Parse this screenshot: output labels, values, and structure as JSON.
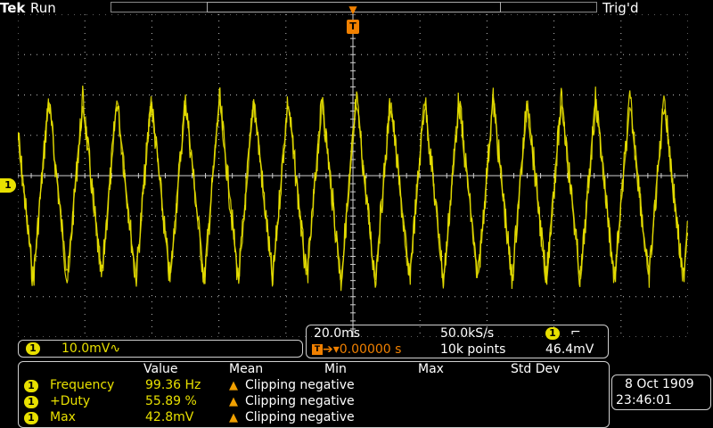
{
  "header": {
    "brand": "Tek",
    "run_state": "Run",
    "trigger_state": "Trig'd"
  },
  "trigger_marker": "T",
  "channel_marker": "1",
  "channel": {
    "badge": "1",
    "scale": "10.0mV",
    "coupling_symbol": "∿"
  },
  "timebase": {
    "time_per_div": "20.0ms",
    "sample_rate": "50.0kS/s",
    "trigger_position_label": "T",
    "trigger_arrow": "➔▾",
    "trigger_position": "0.00000 s",
    "record_length": "10k points",
    "trigger_source_badge": "1",
    "trigger_slope_symbol": "⌐",
    "trigger_level": "46.4mV"
  },
  "measurements": {
    "headers": [
      "Value",
      "Mean",
      "Min",
      "Max",
      "Std Dev"
    ],
    "rows": [
      {
        "badge": "1",
        "name": "Frequency",
        "value": "99.36 Hz",
        "mean": "Clipping negative"
      },
      {
        "badge": "1",
        "name": "+Duty",
        "value": "55.89 %",
        "mean": "Clipping negative"
      },
      {
        "badge": "1",
        "name": "Max",
        "value": "42.8mV",
        "mean": "Clipping negative"
      }
    ]
  },
  "datetime": {
    "date": "8 Oct  1909",
    "time": "23:46:01"
  },
  "colors": {
    "trace": "#e8e000",
    "trigger": "#f08000",
    "grid": "#bdbdbd"
  }
}
